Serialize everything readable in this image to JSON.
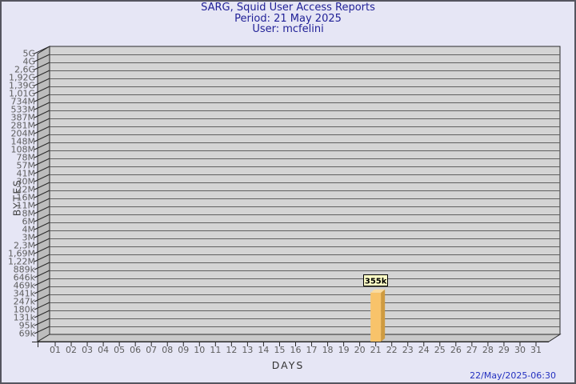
{
  "header": {
    "title": "SARG, Squid User Access Reports",
    "period": "Period: 21 May 2025",
    "user": "User: mcfelini",
    "text_color": "#1f1f96"
  },
  "footer": {
    "timestamp": "22/May/2025-06:30",
    "text_color": "#2330c0"
  },
  "page": {
    "background": "#e6e6f5",
    "border_color": "#55555f"
  },
  "chart_data": {
    "type": "bar",
    "title": "SARG, Squid User Access Reports",
    "subtitle1": "Period: 21 May 2025",
    "subtitle2": "User: mcfelini",
    "xlabel": "DAYS",
    "ylabel": "BYTES",
    "y_scale": "log",
    "ylim_labels": [
      "69k",
      "5G"
    ],
    "grid": "horizontal",
    "legend": "none",
    "x_tick_labels": [
      "01",
      "02",
      "03",
      "04",
      "05",
      "06",
      "07",
      "08",
      "09",
      "10",
      "11",
      "12",
      "13",
      "14",
      "15",
      "16",
      "17",
      "18",
      "19",
      "20",
      "21",
      "22",
      "23",
      "24",
      "25",
      "26",
      "27",
      "28",
      "29",
      "30",
      "31"
    ],
    "y_tick_labels": [
      "5G",
      "4G",
      "2,6G",
      "1,92G",
      "1,39G",
      "1,01G",
      "734M",
      "533M",
      "387M",
      "281M",
      "204M",
      "148M",
      "108M",
      "78M",
      "57M",
      "41M",
      "30M",
      "22M",
      "16M",
      "11M",
      "8M",
      "6M",
      "4M",
      "3M",
      "2,3M",
      "1,69M",
      "1,22M",
      "889k",
      "646k",
      "469k",
      "341k",
      "247k",
      "180k",
      "131k",
      "95k",
      "69k"
    ],
    "series": [
      {
        "name": "BYTES",
        "points": [
          {
            "day": "21",
            "label": "355k",
            "value_bytes": 355000
          }
        ]
      }
    ],
    "colors": {
      "plot_bg": "#d4d4d4",
      "wall": "#bdbdbd",
      "floor": "#c9c9c9",
      "grid": "#5f5f5f",
      "axis": "#2a2a2a",
      "tick_text": "#5e5e5e",
      "bar_front": "#f8c36a",
      "bar_side": "#cf9b40",
      "bar_top": "#fbdc9e",
      "callout_bg": "#ffffc6",
      "callout_border": "#000000",
      "callout_text": "#000000"
    }
  }
}
